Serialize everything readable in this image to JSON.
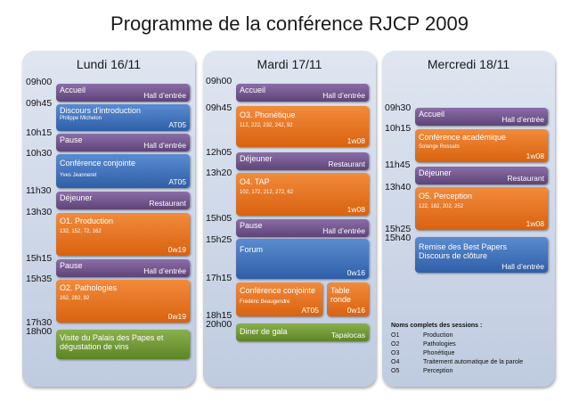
{
  "title": "Programme de la conférence RJCP 2009",
  "days": [
    {
      "label": "Lundi 16/11",
      "times": [
        "09h00",
        "09h45",
        "10h15",
        "10h30",
        "11h30",
        "13h30",
        "15h15",
        "15h35",
        "17h30",
        "18h00"
      ],
      "events": [
        {
          "name": "Accueil",
          "location": "Hall d’entrée",
          "color": "purple"
        },
        {
          "name": "Discours d’introduction",
          "sub": "Philippe Michelon",
          "location": "AT05",
          "color": "blue"
        },
        {
          "name": "Pause",
          "location": "Hall d’entrée",
          "color": "purple"
        },
        {
          "name": "Conférence conjointe",
          "sub": "Yves Jeanneret",
          "location": "AT05",
          "color": "blue"
        },
        {
          "name": "Déjeuner",
          "location": "Restaurant",
          "color": "purple"
        },
        {
          "name": "O1.  Production",
          "sub": "132, 152, 72, 162",
          "location": "0w19",
          "color": "orange"
        },
        {
          "name": "Pause",
          "location": "Hall d’entrée",
          "color": "purple"
        },
        {
          "name": "O2.  Pathologies",
          "sub": "262, 282, 82",
          "location": "0w19",
          "color": "orange"
        },
        {
          "name": "Visite du Palais des Papes et dégustation de vins",
          "location": "",
          "color": "green"
        }
      ]
    },
    {
      "label": "Mardi 17/11",
      "times": [
        "09h00",
        "09h45",
        "12h05",
        "13h20",
        "15h05",
        "15h25",
        "17h15",
        "18h15",
        "20h00"
      ],
      "events": [
        {
          "name": "Accueil",
          "location": "Hall d’entrée",
          "color": "purple"
        },
        {
          "name": "O3.  Phonétique",
          "sub": "112, 222, 232, 242, 92",
          "location": "1w08",
          "color": "orange"
        },
        {
          "name": "Déjeuner",
          "location": "Restaurant",
          "color": "purple"
        },
        {
          "name": "O4.  TAP",
          "sub": "102, 172, 212, 272, 62",
          "location": "1w08",
          "color": "orange"
        },
        {
          "name": "Pause",
          "location": "Hall d’entrée",
          "color": "purple"
        },
        {
          "name": "Forum",
          "location": "0w16",
          "color": "blue"
        },
        {
          "name": "Conférence conjointe",
          "sub": "Frédéric Beaugendre",
          "location": "AT05",
          "color": "orange"
        },
        {
          "name": "Table ronde",
          "location": "0w16",
          "color": "orange"
        },
        {
          "name": "Diner de gala",
          "location": "Tapalocas",
          "color": "green"
        }
      ]
    },
    {
      "label": "Mercredi 18/11",
      "times": [
        "09h30",
        "10h15",
        "11h45",
        "13h40",
        "15h25",
        "15h40"
      ],
      "events": [
        {
          "name": "Accueil",
          "location": "Hall d’entrée",
          "color": "purple"
        },
        {
          "name": "Conférence académique",
          "sub": "Solange Rossato",
          "location": "1w08",
          "color": "orange"
        },
        {
          "name": "Déjeuner",
          "location": "Restaurant",
          "color": "purple"
        },
        {
          "name": "O5.  Perception",
          "sub": "122, 182, 202, 252",
          "location": "1w08",
          "color": "orange"
        },
        {
          "name": "Remise des Best Papers Discours de clôture",
          "location": "Hall d’entrée",
          "color": "blue"
        }
      ]
    }
  ],
  "legend": {
    "title": "Noms complets des sessions :",
    "items": [
      {
        "code": "O1",
        "label": "Production"
      },
      {
        "code": "O2",
        "label": "Pathologies"
      },
      {
        "code": "O3",
        "label": "Phonétique"
      },
      {
        "code": "O4",
        "label": "Traitement automatique de la parole"
      },
      {
        "code": "O5",
        "label": "Perception"
      }
    ]
  }
}
